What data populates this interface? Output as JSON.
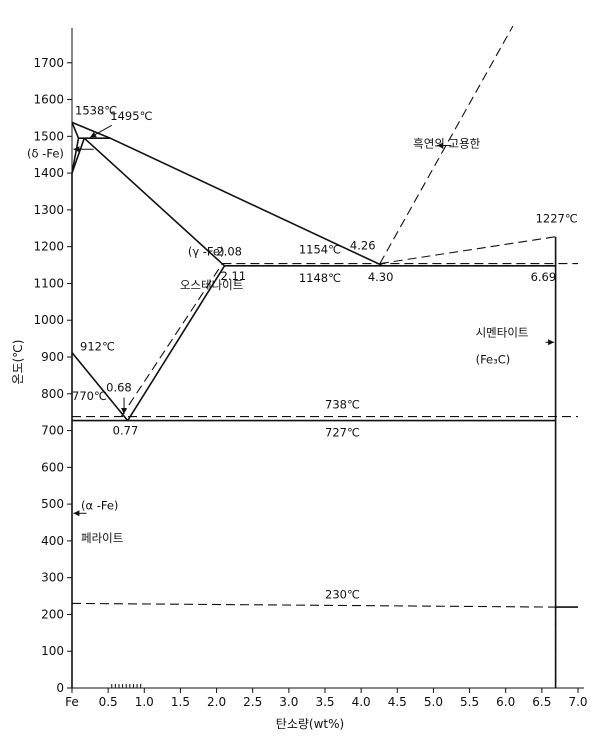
{
  "chart_data": {
    "type": "phase-diagram",
    "xlabel": "탄소량(wt%)",
    "ylabel": "온도(℃)",
    "xlim": [
      0,
      7.0
    ],
    "ylim": [
      0,
      1800
    ],
    "x_tick_labels": [
      "Fe",
      "0.5",
      "1.0",
      "1.5",
      "2.0",
      "2.5",
      "3.0",
      "3.5",
      "4.0",
      "4.5",
      "5.0",
      "5.5",
      "6.0",
      "6.5",
      "7.0"
    ],
    "x_tick_values": [
      0,
      0.5,
      1.0,
      1.5,
      2.0,
      2.5,
      3.0,
      3.5,
      4.0,
      4.5,
      5.0,
      5.5,
      6.0,
      6.5,
      7.0
    ],
    "y_ticks": [
      0,
      100,
      200,
      300,
      400,
      500,
      600,
      700,
      800,
      900,
      1000,
      1100,
      1200,
      1300,
      1400,
      1500,
      1600,
      1700
    ],
    "lines": [
      {
        "style": "solid",
        "points": [
          [
            0,
            1538
          ],
          [
            0.53,
            1495
          ],
          [
            4.3,
            1148
          ]
        ]
      },
      {
        "style": "solid",
        "points": [
          [
            0,
            1400
          ],
          [
            0.09,
            1495
          ],
          [
            0.53,
            1495
          ]
        ]
      },
      {
        "style": "solid",
        "points": [
          [
            0,
            1400
          ],
          [
            0.17,
            1495
          ]
        ]
      },
      {
        "style": "solid",
        "points": [
          [
            0,
            1538
          ],
          [
            0.09,
            1495
          ]
        ]
      },
      {
        "style": "solid",
        "points": [
          [
            0.17,
            1495
          ],
          [
            2.11,
            1148
          ]
        ]
      },
      {
        "style": "solid",
        "points": [
          [
            2.11,
            1148
          ],
          [
            6.69,
            1148
          ]
        ]
      },
      {
        "style": "solid",
        "points": [
          [
            0,
            912
          ],
          [
            0.77,
            727
          ]
        ]
      },
      {
        "style": "solid",
        "points": [
          [
            0.77,
            727
          ],
          [
            2.11,
            1148
          ]
        ]
      },
      {
        "style": "solid",
        "points": [
          [
            0,
            727
          ],
          [
            6.69,
            727
          ]
        ]
      },
      {
        "style": "solid",
        "points": [
          [
            6.69,
            0
          ],
          [
            6.69,
            1227
          ]
        ]
      },
      {
        "style": "solid",
        "points": [
          [
            0,
            0
          ],
          [
            0,
            1400
          ]
        ]
      },
      {
        "style": "dashed",
        "points": [
          [
            4.26,
            1154
          ],
          [
            6.1,
            1800
          ]
        ]
      },
      {
        "style": "dashed",
        "points": [
          [
            2.08,
            1154
          ],
          [
            7.0,
            1154
          ]
        ]
      },
      {
        "style": "dashed",
        "points": [
          [
            4.26,
            1154
          ],
          [
            6.69,
            1227
          ]
        ]
      },
      {
        "style": "dashed",
        "points": [
          [
            0.68,
            738
          ],
          [
            2.08,
            1154
          ]
        ]
      },
      {
        "style": "dashed",
        "points": [
          [
            0,
            738
          ],
          [
            7.0,
            738
          ]
        ]
      },
      {
        "style": "dashed",
        "points": [
          [
            0,
            230
          ],
          [
            6.69,
            220
          ]
        ]
      },
      {
        "style": "dashed",
        "points": [
          [
            6.69,
            230
          ],
          [
            6.69,
            0
          ]
        ]
      },
      {
        "style": "solid",
        "points": [
          [
            6.69,
            220
          ],
          [
            7.0,
            220
          ]
        ]
      }
    ],
    "annotations": [
      {
        "text": "1538℃",
        "x": 0.0,
        "y": 1538
      },
      {
        "text": "1495℃",
        "x": 0.53,
        "y": 1495
      },
      {
        "text": "(δ -Fe)",
        "x": 0.0,
        "y": 1470
      },
      {
        "text": "4.26",
        "x": 4.26,
        "y": 1154
      },
      {
        "text": "1227℃",
        "x": 6.69,
        "y": 1227
      },
      {
        "text": "(γ -Fe)",
        "x": 0.8,
        "y": 1170
      },
      {
        "text": "오스테나이트",
        "x": 0.8,
        "y": 1120
      },
      {
        "text": "2.08",
        "x": 2.08,
        "y": 1154
      },
      {
        "text": "1154℃",
        "x": 3.0,
        "y": 1154
      },
      {
        "text": "2.11",
        "x": 2.11,
        "y": 1148
      },
      {
        "text": "1148℃",
        "x": 3.0,
        "y": 1148
      },
      {
        "text": "4.30",
        "x": 4.3,
        "y": 1148
      },
      {
        "text": "6.69",
        "x": 6.69,
        "y": 1148
      },
      {
        "text": "912℃",
        "x": 0.0,
        "y": 912
      },
      {
        "text": "0.68",
        "x": 0.68,
        "y": 738
      },
      {
        "text": "770℃",
        "x": 0.0,
        "y": 770
      },
      {
        "text": "738℃",
        "x": 3.5,
        "y": 738
      },
      {
        "text": "0.77",
        "x": 0.77,
        "y": 727
      },
      {
        "text": "727℃",
        "x": 3.5,
        "y": 727
      },
      {
        "text": "(α -Fe)",
        "x": 0.0,
        "y": 480
      },
      {
        "text": "페라이트",
        "x": 0.0,
        "y": 430
      },
      {
        "text": "230℃",
        "x": 3.5,
        "y": 230
      },
      {
        "text": "흑연의 고용한",
        "x": 5.3,
        "y": 1470
      },
      {
        "text": "시멘타이트",
        "x": 6.69,
        "y": 950
      },
      {
        "text": "(Fe₃C)",
        "x": 6.69,
        "y": 910
      }
    ]
  }
}
